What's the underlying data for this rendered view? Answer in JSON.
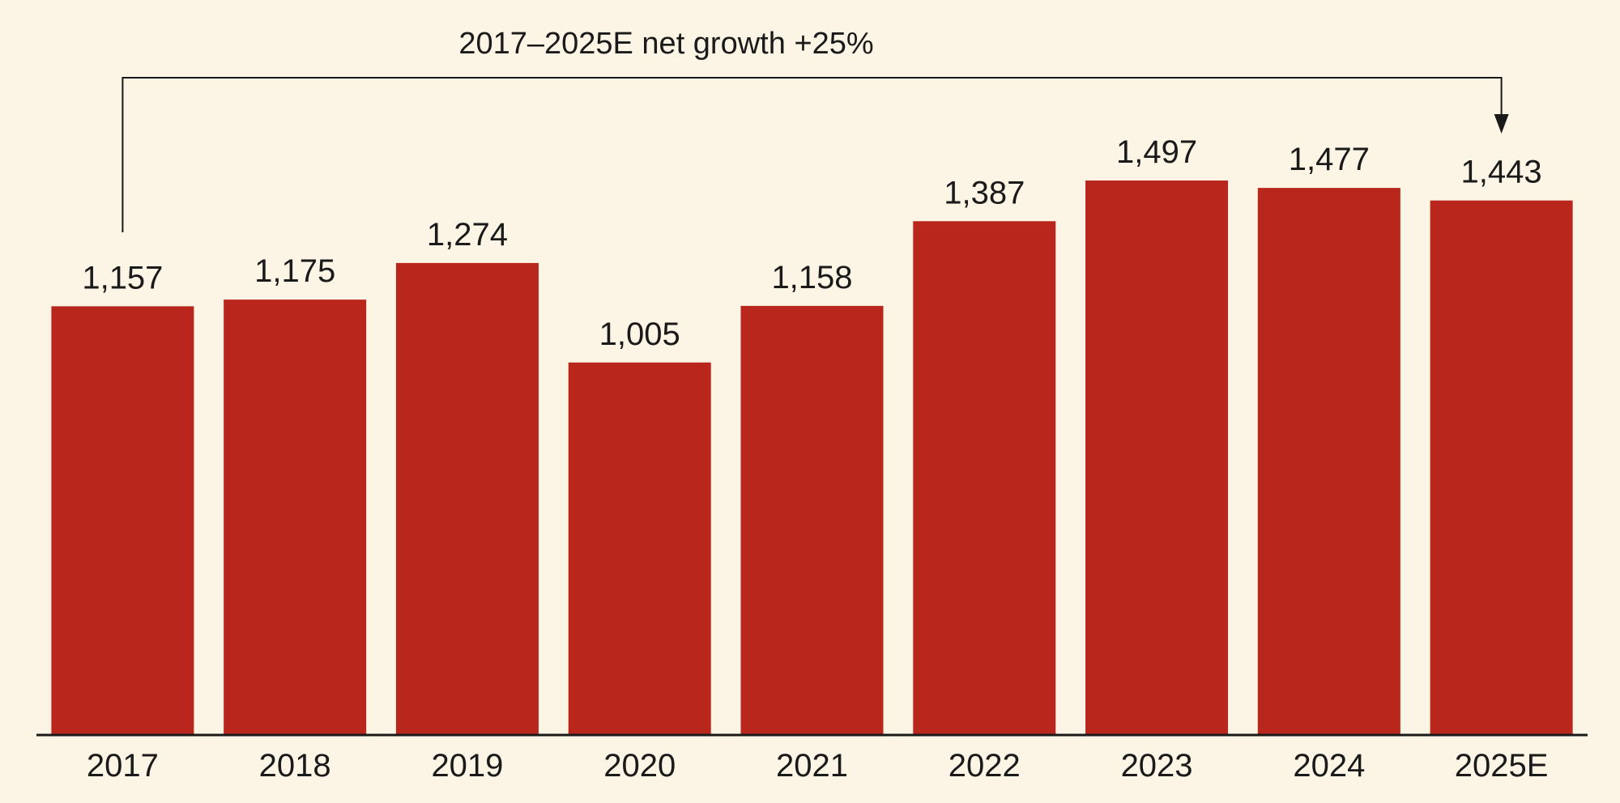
{
  "chart_data": {
    "type": "bar",
    "categories": [
      "2017",
      "2018",
      "2019",
      "2020",
      "2021",
      "2022",
      "2023",
      "2024",
      "2025E"
    ],
    "values": [
      1157,
      1175,
      1274,
      1005,
      1158,
      1387,
      1497,
      1477,
      1443
    ],
    "value_labels": [
      "1,157",
      "1,175",
      "1,274",
      "1,005",
      "1,158",
      "1,387",
      "1,497",
      "1,477",
      "1,443"
    ],
    "title": "",
    "xlabel": "",
    "ylabel": "",
    "ylim": [
      0,
      1497
    ],
    "grid": false,
    "annotation": {
      "text": "2017–2025E net growth +25%",
      "from_category": "2017",
      "to_category": "2025E"
    },
    "colors": {
      "bar": "#b9261c",
      "background": "#fcf4e4",
      "axis": "#1a1a1a",
      "text": "#1a1a1a"
    }
  }
}
